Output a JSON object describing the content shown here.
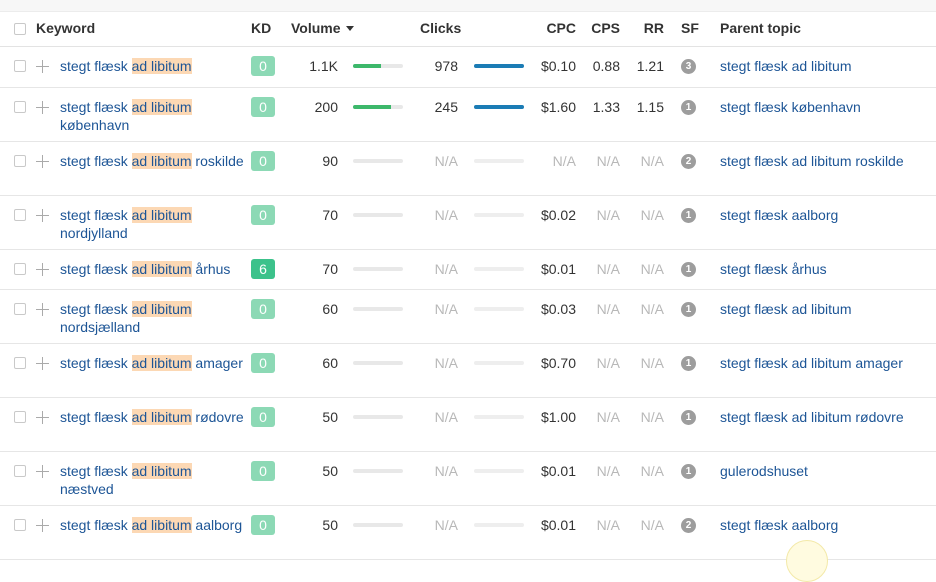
{
  "headers": {
    "keyword": "Keyword",
    "kd": "KD",
    "volume": "Volume",
    "clicks": "Clicks",
    "cpc": "CPC",
    "cps": "CPS",
    "rr": "RR",
    "sf": "SF",
    "parent_topic": "Parent topic"
  },
  "sort": {
    "column": "volume",
    "direction": "descending",
    "icon": "caret-down-icon"
  },
  "colors": {
    "link": "#1d5596",
    "highlight": "#fcd8b4",
    "kd_low": "#8cd9b5",
    "kd_mid": "#3cc28b",
    "volume_bar": "#3db86b",
    "clicks_bar": "#1b7cb5",
    "na_text": "#b8b8b8",
    "sf_badge": "#9d9d9d"
  },
  "rows": [
    {
      "kw_pre": "stegt flæsk ",
      "kw_hl": "ad libitum",
      "kw_post": "",
      "kd": "0",
      "volume": "1.1K",
      "volume_fill": 0.55,
      "clicks": "978",
      "clicks_fill": 1.0,
      "cpc": "$0.10",
      "cps": "0.88",
      "rr": "1.21",
      "sf": "3",
      "parent": "stegt flæsk ad libitum"
    },
    {
      "kw_pre": "stegt flæsk ",
      "kw_hl": "ad libitum",
      "kw_post": " københavn",
      "kd": "0",
      "volume": "200",
      "volume_fill": 0.75,
      "clicks": "245",
      "clicks_fill": 1.0,
      "cpc": "$1.60",
      "cps": "1.33",
      "rr": "1.15",
      "sf": "1",
      "parent": "stegt flæsk københavn"
    },
    {
      "kw_pre": "stegt flæsk ",
      "kw_hl": "ad libitum",
      "kw_post": " roskilde",
      "kd": "0",
      "volume": "90",
      "volume_fill": 0,
      "clicks": "N/A",
      "clicks_fill": 0,
      "cpc": "N/A",
      "cps": "N/A",
      "rr": "N/A",
      "sf": "2",
      "parent": "stegt flæsk ad libitum roskilde"
    },
    {
      "kw_pre": "stegt flæsk ",
      "kw_hl": "ad libitum",
      "kw_post": " nordjylland",
      "kd": "0",
      "volume": "70",
      "volume_fill": 0,
      "clicks": "N/A",
      "clicks_fill": 0,
      "cpc": "$0.02",
      "cps": "N/A",
      "rr": "N/A",
      "sf": "1",
      "parent": "stegt flæsk aalborg"
    },
    {
      "kw_pre": "stegt flæsk ",
      "kw_hl": "ad libitum",
      "kw_post": " århus",
      "kd": "6",
      "volume": "70",
      "volume_fill": 0,
      "clicks": "N/A",
      "clicks_fill": 0,
      "cpc": "$0.01",
      "cps": "N/A",
      "rr": "N/A",
      "sf": "1",
      "parent": "stegt flæsk århus"
    },
    {
      "kw_pre": "stegt flæsk ",
      "kw_hl": "ad libitum",
      "kw_post": " nordsjælland",
      "kd": "0",
      "volume": "60",
      "volume_fill": 0,
      "clicks": "N/A",
      "clicks_fill": 0,
      "cpc": "$0.03",
      "cps": "N/A",
      "rr": "N/A",
      "sf": "1",
      "parent": "stegt flæsk ad libitum"
    },
    {
      "kw_pre": "stegt flæsk ",
      "kw_hl": "ad libitum",
      "kw_post": " amager",
      "kd": "0",
      "volume": "60",
      "volume_fill": 0,
      "clicks": "N/A",
      "clicks_fill": 0,
      "cpc": "$0.70",
      "cps": "N/A",
      "rr": "N/A",
      "sf": "1",
      "parent": "stegt flæsk ad libitum amager"
    },
    {
      "kw_pre": "stegt flæsk ",
      "kw_hl": "ad libitum",
      "kw_post": " rødovre",
      "kd": "0",
      "volume": "50",
      "volume_fill": 0,
      "clicks": "N/A",
      "clicks_fill": 0,
      "cpc": "$1.00",
      "cps": "N/A",
      "rr": "N/A",
      "sf": "1",
      "parent": "stegt flæsk ad libitum rødovre"
    },
    {
      "kw_pre": "stegt flæsk ",
      "kw_hl": "ad libitum",
      "kw_post": " næstved",
      "kd": "0",
      "volume": "50",
      "volume_fill": 0,
      "clicks": "N/A",
      "clicks_fill": 0,
      "cpc": "$0.01",
      "cps": "N/A",
      "rr": "N/A",
      "sf": "1",
      "parent": "gulerodshuset"
    },
    {
      "kw_pre": "stegt flæsk ",
      "kw_hl": "ad libitum",
      "kw_post": " aalborg",
      "kd": "0",
      "volume": "50",
      "volume_fill": 0,
      "clicks": "N/A",
      "clicks_fill": 0,
      "cpc": "$0.01",
      "cps": "N/A",
      "rr": "N/A",
      "sf": "2",
      "parent": "stegt flæsk aalborg"
    }
  ]
}
